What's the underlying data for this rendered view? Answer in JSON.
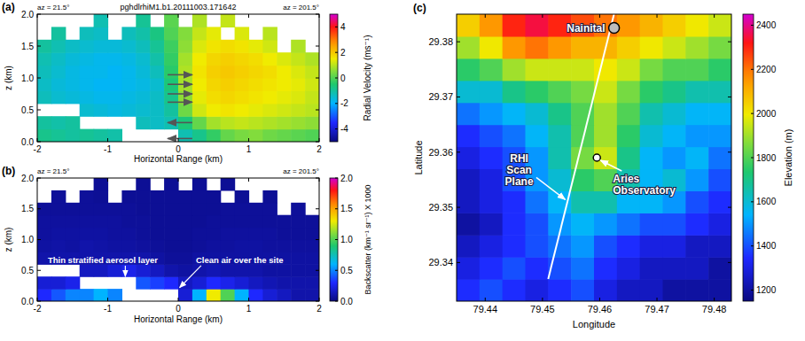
{
  "chart_data": [
    {
      "type": "heatmap",
      "panel_label": "(a)",
      "title": "pghdlrhiM1.b1.20111003.171642",
      "left_label": "az = 21.5°",
      "right_label": "az = 201.5°",
      "x_label": "Horizontal Range (km)",
      "y_label": "z (km)",
      "xlim": [
        -2,
        2
      ],
      "xticks": [
        -2,
        -1,
        0,
        1,
        2
      ],
      "ylim": [
        0,
        2
      ],
      "yticks": [
        {
          "value": 0,
          "label": "0.0"
        },
        0.5,
        {
          "value": 1,
          "label": "1.0"
        },
        1.5,
        {
          "value": 2,
          "label": "2.0"
        }
      ],
      "x_edges": [
        -2,
        -1.8,
        -1.6,
        -1.4,
        -1.2,
        -1,
        -0.8,
        -0.6,
        -0.4,
        -0.2,
        0,
        0.2,
        0.4,
        0.6,
        0.8,
        1,
        1.2,
        1.4,
        1.6,
        1.8,
        2
      ],
      "y_edges": [
        0,
        0.2,
        0.4,
        0.6,
        0.8,
        1,
        1.2,
        1.4,
        1.6,
        1.8,
        2
      ],
      "cells": [
        [
          -0.8,
          -0.9,
          -1.0,
          -0.9,
          -1.0,
          -1.1,
          null,
          null,
          null,
          null,
          -1.2,
          -0.8,
          -0.3,
          0.2,
          0.4,
          0.5,
          0.3,
          0.2,
          0.1,
          0.0
        ],
        [
          -1.0,
          -1.1,
          -1.0,
          null,
          null,
          null,
          null,
          -1.3,
          -1.4,
          -1.2,
          -0.6,
          0.2,
          0.8,
          1.0,
          1.1,
          1.0,
          0.9,
          0.8,
          0.7,
          0.6
        ],
        [
          null,
          null,
          null,
          -1.5,
          -1.6,
          -1.7,
          -1.6,
          -1.5,
          -1.4,
          -1.0,
          0.3,
          1.2,
          1.5,
          1.6,
          1.5,
          1.4,
          1.3,
          1.2,
          1.1,
          1.0
        ],
        [
          -1.3,
          -1.5,
          -1.6,
          -1.7,
          -1.8,
          -1.8,
          -1.7,
          -1.6,
          -1.4,
          -0.8,
          0.6,
          1.4,
          1.7,
          1.8,
          1.7,
          1.6,
          1.5,
          1.4,
          1.3,
          1.1
        ],
        [
          -1.4,
          -1.6,
          -1.7,
          -1.8,
          -1.9,
          -1.9,
          -1.8,
          -1.7,
          -1.5,
          -0.6,
          0.8,
          1.5,
          1.8,
          1.9,
          1.8,
          1.7,
          1.6,
          1.5,
          1.4,
          1.2
        ],
        [
          -1.3,
          -1.5,
          -1.7,
          -1.8,
          -1.8,
          -1.9,
          -1.8,
          -1.6,
          -1.3,
          -0.4,
          0.9,
          1.6,
          1.9,
          2.0,
          1.9,
          1.8,
          1.7,
          1.5,
          1.3,
          1.1
        ],
        [
          -1.2,
          -1.4,
          -1.6,
          -1.7,
          -1.8,
          -1.8,
          -1.7,
          -1.5,
          -1.1,
          -0.3,
          0.8,
          1.5,
          1.8,
          1.9,
          1.8,
          1.7,
          1.5,
          1.3,
          1.1,
          0.9
        ],
        [
          -1.0,
          -1.2,
          -1.4,
          -1.5,
          -1.6,
          -1.6,
          -1.5,
          -1.3,
          -0.9,
          -0.2,
          0.6,
          1.3,
          1.6,
          1.7,
          1.6,
          1.4,
          1.2,
          null,
          0.9,
          null
        ],
        [
          null,
          -1.0,
          null,
          -1.3,
          -1.4,
          null,
          -1.3,
          -1.1,
          -0.7,
          0.0,
          0.5,
          1.1,
          1.4,
          null,
          1.3,
          null,
          1.0,
          null,
          null,
          null
        ],
        [
          null,
          null,
          null,
          null,
          -1.2,
          null,
          null,
          -0.9,
          null,
          0.1,
          null,
          0.9,
          null,
          1.1,
          null,
          null,
          null,
          null,
          null,
          null
        ]
      ],
      "colorbar": {
        "label": "Radial Velocity (ms⁻¹)",
        "range": [
          -5,
          5
        ],
        "ticks": [
          -4,
          -2,
          0,
          2,
          4
        ]
      },
      "arrows": [
        {
          "x": -0.15,
          "z": 1.05,
          "direction": "right"
        },
        {
          "x": -0.15,
          "z": 0.9,
          "direction": "right"
        },
        {
          "x": -0.15,
          "z": 0.75,
          "direction": "right"
        },
        {
          "x": -0.15,
          "z": 0.62,
          "direction": "right"
        },
        {
          "x": -0.15,
          "z": 0.3,
          "direction": "left"
        },
        {
          "x": -0.15,
          "z": 0.05,
          "direction": "left"
        }
      ]
    },
    {
      "type": "heatmap",
      "panel_label": "(b)",
      "left_label": "az = 21.5°",
      "right_label": "az = 201.5°",
      "x_label": "Horizontal Range (km)",
      "y_label": "z (km)",
      "xlim": [
        -2,
        2
      ],
      "xticks": [
        -2,
        -1,
        0,
        1,
        2
      ],
      "ylim": [
        0,
        2
      ],
      "yticks": [
        {
          "value": 0,
          "label": "0.0"
        },
        0.5,
        {
          "value": 1,
          "label": "1.0"
        },
        1.5,
        {
          "value": 2,
          "label": "2.0"
        }
      ],
      "x_edges": [
        -2,
        -1.8,
        -1.6,
        -1.4,
        -1.2,
        -1,
        -0.8,
        -0.6,
        -0.4,
        -0.2,
        0,
        0.2,
        0.4,
        0.6,
        0.8,
        1,
        1.2,
        1.4,
        1.6,
        1.8,
        2
      ],
      "y_edges": [
        0,
        0.2,
        0.4,
        0.6,
        0.8,
        1,
        1.2,
        1.4,
        1.6,
        1.8,
        2
      ],
      "cells": [
        [
          0.3,
          0.4,
          0.5,
          0.5,
          0.6,
          0.5,
          null,
          null,
          null,
          null,
          0.2,
          0.6,
          1.3,
          1.0,
          0.6,
          0.3,
          0.2,
          0.15,
          0.1,
          0.1
        ],
        [
          0.2,
          0.2,
          0.25,
          null,
          null,
          null,
          null,
          0.4,
          0.35,
          0.3,
          0.15,
          0.2,
          0.3,
          0.25,
          0.2,
          0.15,
          0.12,
          0.1,
          0.1,
          0.1
        ],
        [
          null,
          null,
          null,
          0.15,
          0.15,
          0.2,
          0.25,
          0.2,
          0.15,
          0.1,
          0.08,
          0.1,
          0.12,
          0.1,
          0.1,
          0.1,
          0.08,
          0.08,
          0.08,
          0.08
        ],
        [
          0.1,
          0.1,
          0.1,
          0.1,
          0.1,
          0.1,
          0.1,
          0.1,
          0.08,
          0.06,
          0.06,
          0.08,
          0.08,
          0.08,
          0.08,
          0.08,
          0.08,
          0.08,
          0.08,
          0.08
        ],
        [
          0.08,
          0.09,
          0.08,
          0.1,
          0.09,
          0.08,
          0.08,
          0.07,
          0.06,
          0.05,
          0.05,
          0.06,
          0.07,
          0.07,
          0.08,
          0.08,
          0.07,
          0.07,
          0.07,
          0.07
        ],
        [
          0.07,
          0.08,
          0.08,
          0.08,
          0.08,
          0.07,
          0.07,
          0.06,
          0.05,
          0.05,
          0.05,
          0.06,
          0.06,
          0.07,
          0.07,
          0.07,
          0.07,
          0.06,
          0.06,
          0.06
        ],
        [
          0.07,
          0.07,
          0.07,
          0.07,
          0.07,
          0.07,
          0.06,
          0.06,
          0.05,
          0.05,
          0.05,
          0.05,
          0.06,
          0.06,
          0.06,
          0.06,
          0.06,
          0.06,
          0.06,
          0.06
        ],
        [
          0.06,
          0.06,
          0.06,
          0.06,
          0.06,
          0.06,
          0.06,
          0.05,
          0.05,
          0.05,
          0.05,
          0.05,
          0.05,
          0.06,
          0.06,
          0.06,
          0.06,
          null,
          0.06,
          null
        ],
        [
          null,
          0.06,
          null,
          0.06,
          0.05,
          null,
          0.05,
          0.05,
          0.05,
          0.05,
          0.05,
          0.05,
          0.05,
          null,
          0.05,
          null,
          0.05,
          null,
          null,
          null
        ],
        [
          null,
          null,
          null,
          null,
          0.05,
          null,
          null,
          0.05,
          null,
          0.05,
          null,
          0.05,
          null,
          0.05,
          null,
          null,
          null,
          null,
          null,
          null
        ]
      ],
      "colorbar": {
        "label": "Backscatter (km⁻¹ sr⁻¹) X 1000",
        "range": [
          0,
          2
        ],
        "ticks": [
          {
            "value": 0,
            "label": "0.0"
          },
          0.5,
          {
            "value": 1,
            "label": "1.0"
          },
          1.5,
          {
            "value": 2,
            "label": "2.0"
          }
        ]
      },
      "annotations": [
        {
          "text": "Thin stratified aerosol layer",
          "x": -1.85,
          "y": 0.62,
          "target_x": -0.75,
          "target_y": 0.4
        },
        {
          "text": "Clean air over the site",
          "x": 0.25,
          "y": 0.62,
          "target_x": 0.02,
          "target_y": 0.22
        }
      ]
    },
    {
      "type": "heatmap",
      "panel_label": "(c)",
      "x_label": "Longitude",
      "y_label": "Latitude",
      "xlim": [
        79.435,
        79.483
      ],
      "xticks": [
        79.44,
        79.45,
        79.46,
        79.47,
        79.48
      ],
      "ylim": [
        29.333,
        29.385
      ],
      "yticks": [
        29.34,
        29.35,
        29.36,
        29.37,
        29.38
      ],
      "x_edges": [
        79.435,
        79.439,
        79.443,
        79.447,
        79.451,
        79.455,
        79.459,
        79.463,
        79.467,
        79.471,
        79.475,
        79.479,
        79.483
      ],
      "y_edges": [
        29.333,
        29.337,
        29.341,
        29.345,
        29.349,
        29.353,
        29.357,
        29.361,
        29.365,
        29.369,
        29.373,
        29.377,
        29.381,
        29.385
      ],
      "cells": [
        [
          1350,
          1400,
          1350,
          1300,
          1350,
          1400,
          1300,
          1250,
          1250,
          1200,
          1200,
          1200
        ],
        [
          1300,
          1350,
          1400,
          1350,
          1400,
          1450,
          1350,
          1300,
          1250,
          1250,
          1250,
          1200
        ],
        [
          1250,
          1300,
          1350,
          1400,
          1450,
          1500,
          1400,
          1350,
          1300,
          1300,
          1250,
          1250
        ],
        [
          1200,
          1250,
          1350,
          1400,
          1500,
          1550,
          1500,
          1450,
          1400,
          1400,
          1350,
          1300
        ],
        [
          1250,
          1300,
          1350,
          1450,
          1550,
          1650,
          1650,
          1550,
          1550,
          1500,
          1400,
          1350
        ],
        [
          1250,
          1300,
          1400,
          1500,
          1600,
          1750,
          1800,
          1650,
          1550,
          1600,
          1500,
          1400
        ],
        [
          1300,
          1350,
          1400,
          1500,
          1650,
          1850,
          1950,
          1700,
          1550,
          1500,
          1550,
          1450
        ],
        [
          1350,
          1400,
          1450,
          1550,
          1650,
          1800,
          1900,
          1750,
          1600,
          1550,
          1500,
          1500
        ],
        [
          1450,
          1500,
          1550,
          1600,
          1700,
          1800,
          1900,
          1800,
          1650,
          1600,
          1550,
          1550
        ],
        [
          1600,
          1600,
          1700,
          1750,
          1800,
          1850,
          1950,
          1850,
          1750,
          1700,
          1650,
          1650
        ],
        [
          1750,
          1800,
          1900,
          1950,
          1950,
          1950,
          2000,
          1950,
          1850,
          1800,
          1800,
          1750
        ],
        [
          1900,
          2000,
          2150,
          2200,
          2150,
          2100,
          2100,
          2050,
          2000,
          1950,
          1900,
          1850
        ],
        [
          2050,
          2150,
          2300,
          2350,
          2300,
          2250,
          2200,
          2150,
          2100,
          2050,
          2000,
          1950
        ]
      ],
      "colorbar": {
        "label": "Elevation (m)",
        "range": [
          1150,
          2450
        ],
        "ticks": [
          1200,
          1400,
          1600,
          1800,
          2000,
          2200,
          2400
        ]
      },
      "points": [
        {
          "name": "Nainital",
          "x": 79.4625,
          "y": 29.3825
        },
        {
          "name": "Aries Observatory",
          "x": 79.4595,
          "y": 29.359
        }
      ],
      "scan_line": {
        "name": "RHI Scan Plane",
        "lon": [
          79.451,
          79.4625
        ],
        "lat": [
          29.337,
          29.385
        ]
      }
    }
  ]
}
